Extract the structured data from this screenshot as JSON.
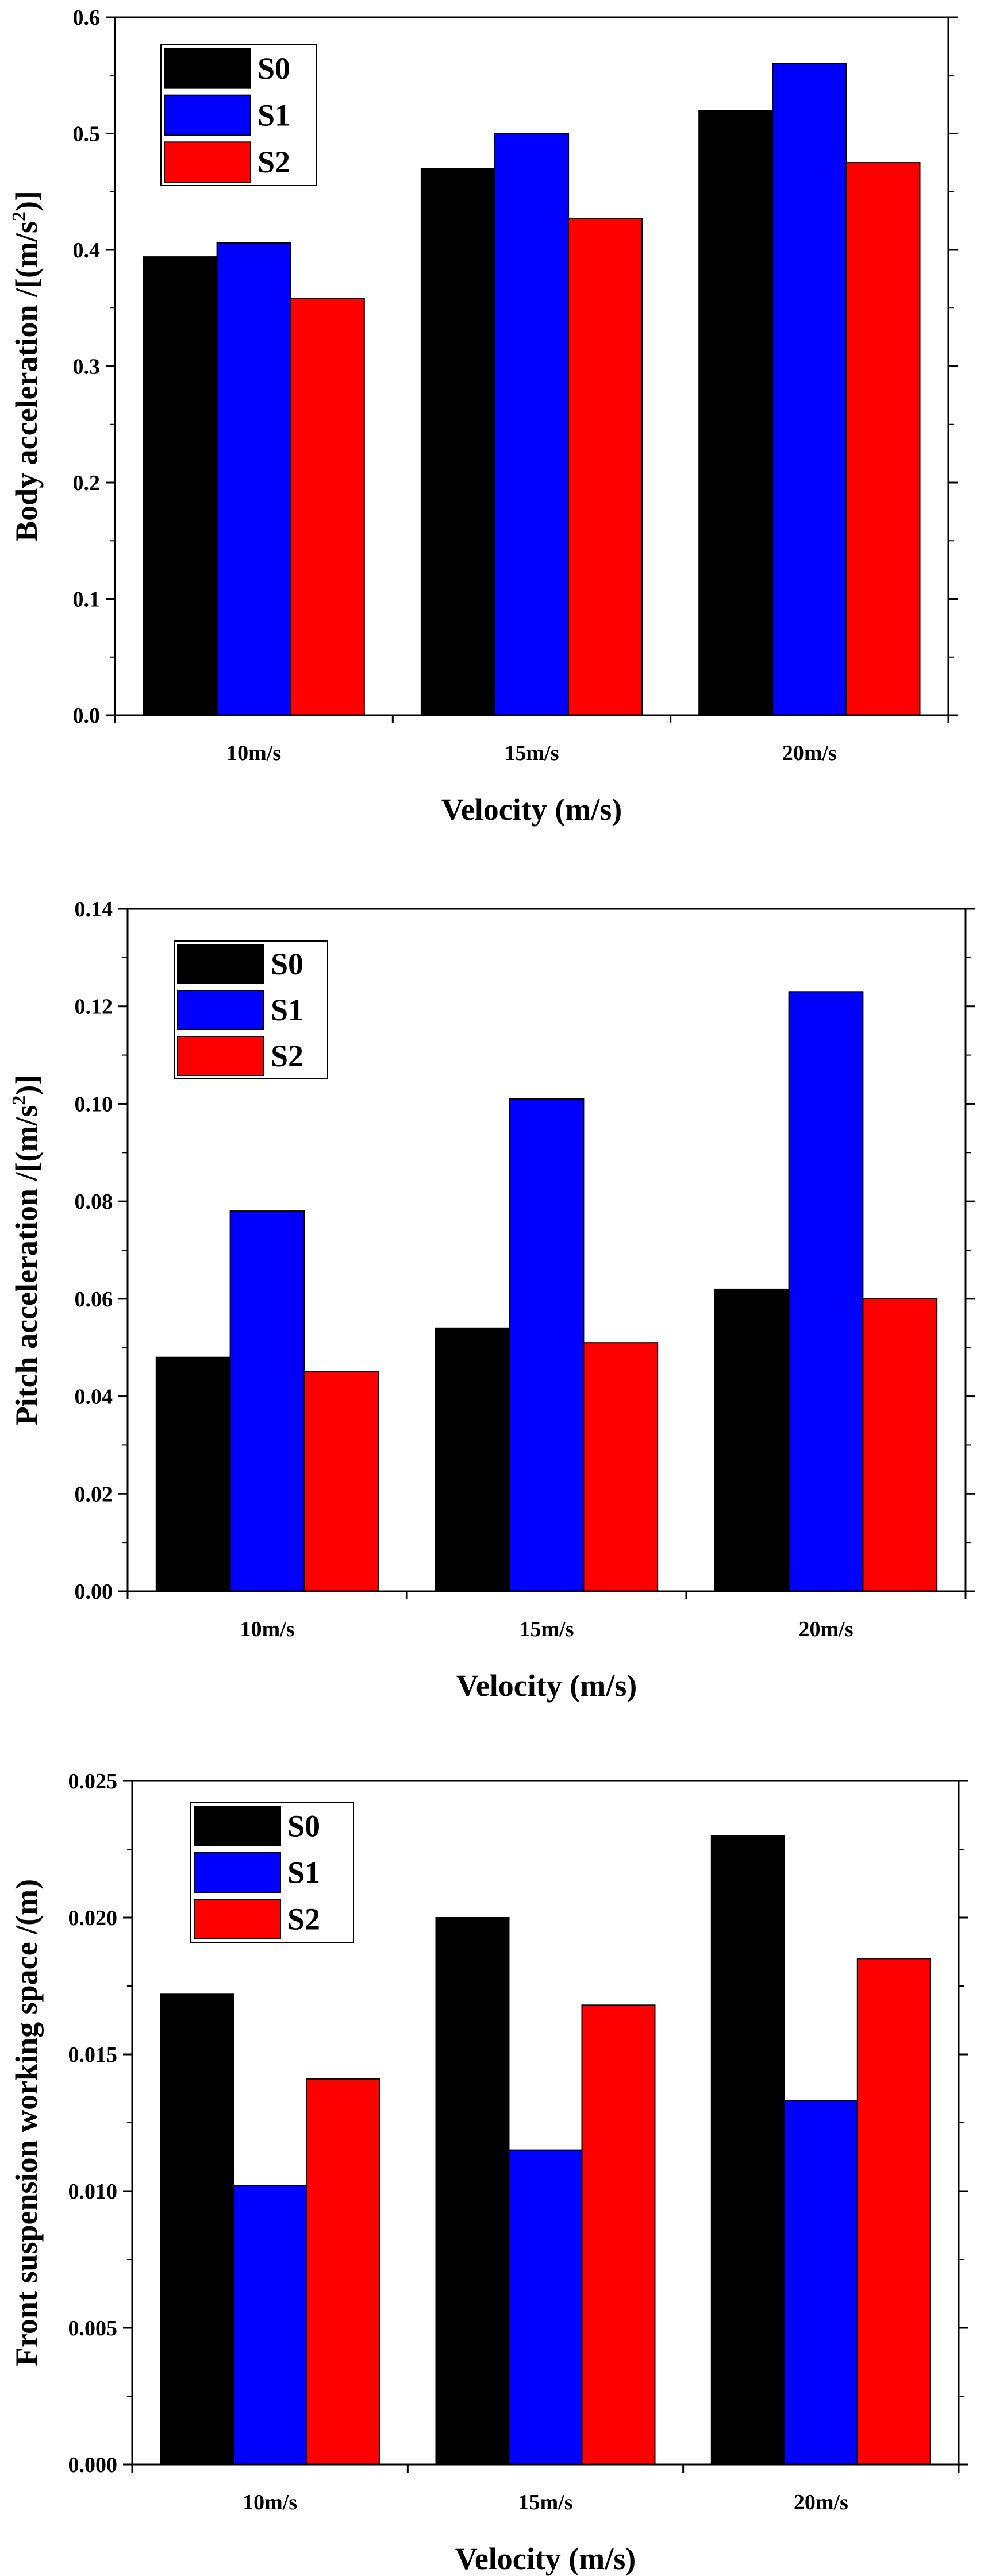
{
  "chart_data": [
    {
      "type": "bar",
      "title": "",
      "categories": [
        "10m/s",
        "15m/s",
        "20m/s"
      ],
      "series": [
        {
          "name": "S0",
          "color": "#000000",
          "values": [
            0.394,
            0.47,
            0.52
          ]
        },
        {
          "name": "S1",
          "color": "#0000FF",
          "values": [
            0.406,
            0.5,
            0.56
          ]
        },
        {
          "name": "S2",
          "color": "#FF0000",
          "values": [
            0.358,
            0.427,
            0.475
          ]
        }
      ],
      "xlabel": "Velocity (m/s)",
      "ylabel": "Body acceleration /[(m/s",
      "ylabel_sup": "2",
      "ylabel_end": ")]",
      "ylim": [
        0,
        0.6
      ],
      "yticks": [
        "0.0",
        "0.1",
        "0.2",
        "0.3",
        "0.4",
        "0.5",
        "0.6"
      ],
      "legend": "top-left",
      "grid": false
    },
    {
      "type": "bar",
      "title": "",
      "categories": [
        "10m/s",
        "15m/s",
        "20m/s"
      ],
      "series": [
        {
          "name": "S0",
          "color": "#000000",
          "values": [
            0.048,
            0.054,
            0.062
          ]
        },
        {
          "name": "S1",
          "color": "#0000FF",
          "values": [
            0.078,
            0.101,
            0.123
          ]
        },
        {
          "name": "S2",
          "color": "#FF0000",
          "values": [
            0.045,
            0.051,
            0.06
          ]
        }
      ],
      "xlabel": "Velocity (m/s)",
      "ylabel": "Pitch acceleration /[(m/s",
      "ylabel_sup": "2",
      "ylabel_end": ")]",
      "ylim": [
        0,
        0.14
      ],
      "yticks": [
        "0.00",
        "0.02",
        "0.04",
        "0.06",
        "0.08",
        "0.10",
        "0.12",
        "0.14"
      ],
      "legend": "top-left",
      "grid": false
    },
    {
      "type": "bar",
      "title": "",
      "categories": [
        "10m/s",
        "15m/s",
        "20m/s"
      ],
      "series": [
        {
          "name": "S0",
          "color": "#000000",
          "values": [
            0.0172,
            0.02,
            0.023
          ]
        },
        {
          "name": "S1",
          "color": "#0000FF",
          "values": [
            0.0102,
            0.0115,
            0.0133
          ]
        },
        {
          "name": "S2",
          "color": "#FF0000",
          "values": [
            0.0141,
            0.0168,
            0.0185
          ]
        }
      ],
      "xlabel": "Velocity (m/s)",
      "ylabel": "Front suspension working space /(m)",
      "ylabel_sup": "",
      "ylabel_end": "",
      "ylim": [
        0,
        0.025
      ],
      "yticks": [
        "0.000",
        "0.005",
        "0.010",
        "0.015",
        "0.020",
        "0.025"
      ],
      "legend": "top-left",
      "grid": false
    }
  ]
}
